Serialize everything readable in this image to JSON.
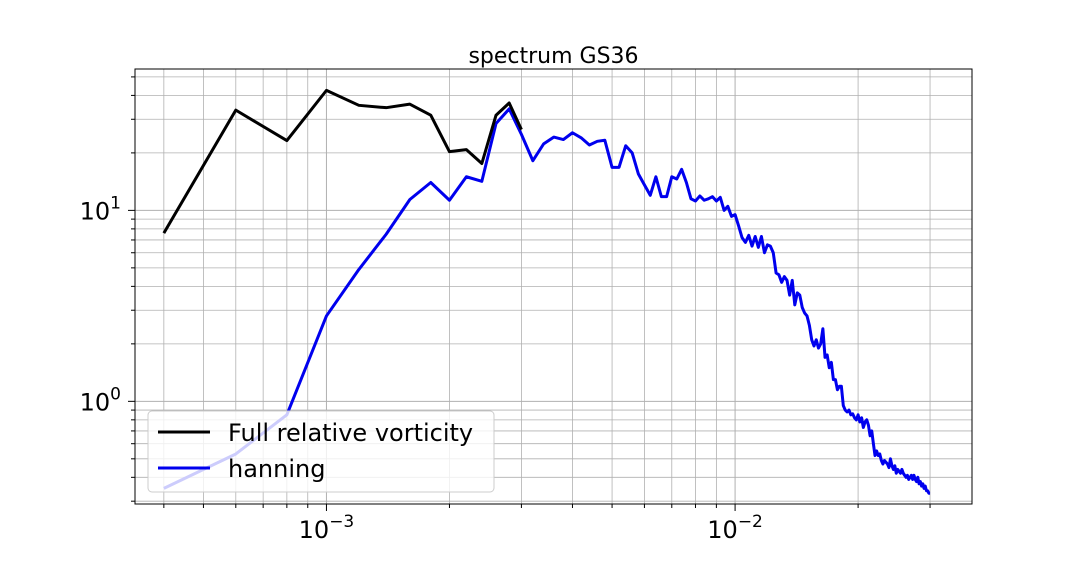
{
  "chart_data": {
    "type": "line",
    "title": "spectrum GS36",
    "xlabel": "",
    "ylabel": "",
    "xscale": "log",
    "yscale": "log",
    "xlim": [
      0.00034,
      0.038
    ],
    "ylim": [
      0.29,
      55
    ],
    "grid": true,
    "legend_position": "lower-left",
    "x_ticks": [
      {
        "value": 0.001,
        "base": "10",
        "exp": "−3"
      },
      {
        "value": 0.01,
        "base": "10",
        "exp": "−2"
      }
    ],
    "y_ticks": [
      {
        "value": 1,
        "base": "10",
        "exp": "0"
      },
      {
        "value": 10,
        "base": "10",
        "exp": "1"
      }
    ],
    "series": [
      {
        "name": "Full relative vorticity",
        "color": "#000000",
        "points": [
          [
            0.0004,
            7.6
          ],
          [
            0.0006,
            33.5
          ],
          [
            0.0008,
            23.2
          ],
          [
            0.001,
            42.5
          ],
          [
            0.0012,
            35.5
          ],
          [
            0.0014,
            34.5
          ],
          [
            0.0016,
            36.0
          ],
          [
            0.0018,
            31.5
          ],
          [
            0.002,
            20.3
          ],
          [
            0.0022,
            20.8
          ],
          [
            0.0024,
            17.6
          ],
          [
            0.0026,
            31.5
          ],
          [
            0.0028,
            36.5
          ],
          [
            0.003,
            26.5
          ]
        ]
      },
      {
        "name": "hanning",
        "color": "#0000ee",
        "points": [
          [
            0.0004,
            0.35
          ],
          [
            0.0006,
            0.53
          ],
          [
            0.0008,
            0.85
          ],
          [
            0.001,
            2.8
          ],
          [
            0.0012,
            4.9
          ],
          [
            0.0014,
            7.5
          ],
          [
            0.0016,
            11.4
          ],
          [
            0.0018,
            14.0
          ],
          [
            0.002,
            11.3
          ],
          [
            0.0022,
            15.0
          ],
          [
            0.0024,
            14.2
          ],
          [
            0.0026,
            28.5
          ],
          [
            0.0028,
            34.0
          ],
          [
            0.003,
            25.0
          ],
          [
            0.0032,
            18.2
          ],
          [
            0.0034,
            22.3
          ],
          [
            0.0036,
            24.2
          ],
          [
            0.0038,
            23.5
          ],
          [
            0.004,
            25.5
          ],
          [
            0.0042,
            24.0
          ],
          [
            0.0044,
            22.0
          ],
          [
            0.0046,
            23.0
          ],
          [
            0.0048,
            23.3
          ],
          [
            0.005,
            16.8
          ],
          [
            0.0052,
            16.8
          ],
          [
            0.0054,
            21.8
          ],
          [
            0.0056,
            20.0
          ],
          [
            0.0058,
            15.5
          ],
          [
            0.006,
            13.6
          ],
          [
            0.0062,
            12.0
          ],
          [
            0.0064,
            15.0
          ],
          [
            0.0066,
            11.8
          ],
          [
            0.0068,
            11.8
          ],
          [
            0.007,
            15.0
          ],
          [
            0.0072,
            14.6
          ],
          [
            0.0074,
            16.4
          ],
          [
            0.0076,
            14.0
          ],
          [
            0.0078,
            11.5
          ],
          [
            0.008,
            11.2
          ],
          [
            0.0082,
            11.9
          ],
          [
            0.0084,
            11.3
          ],
          [
            0.0086,
            11.5
          ],
          [
            0.0088,
            11.8
          ],
          [
            0.009,
            11.2
          ],
          [
            0.0092,
            11.7
          ],
          [
            0.0094,
            10.0
          ],
          [
            0.0096,
            10.5
          ],
          [
            0.0098,
            9.3
          ],
          [
            0.01,
            9.5
          ],
          [
            0.0102,
            8.3
          ],
          [
            0.0104,
            7.2
          ],
          [
            0.0106,
            6.8
          ],
          [
            0.0108,
            7.4
          ],
          [
            0.011,
            6.5
          ],
          [
            0.0112,
            7.3
          ],
          [
            0.0114,
            6.4
          ],
          [
            0.0116,
            7.3
          ],
          [
            0.0118,
            6.0
          ],
          [
            0.012,
            6.6
          ],
          [
            0.0122,
            6.5
          ],
          [
            0.0124,
            6.0
          ],
          [
            0.0126,
            4.7
          ],
          [
            0.0128,
            4.6
          ],
          [
            0.013,
            4.2
          ],
          [
            0.0132,
            4.5
          ],
          [
            0.0134,
            4.3
          ],
          [
            0.0136,
            3.6
          ],
          [
            0.0138,
            4.3
          ],
          [
            0.014,
            3.2
          ],
          [
            0.0142,
            3.7
          ],
          [
            0.0144,
            3.6
          ],
          [
            0.0146,
            3.1
          ],
          [
            0.0148,
            2.9
          ],
          [
            0.015,
            2.8
          ],
          [
            0.0152,
            2.5
          ],
          [
            0.0154,
            2.1
          ],
          [
            0.0156,
            1.95
          ],
          [
            0.0158,
            2.1
          ],
          [
            0.016,
            1.9
          ],
          [
            0.0162,
            2.0
          ],
          [
            0.0164,
            2.4
          ],
          [
            0.0166,
            1.7
          ],
          [
            0.0168,
            1.75
          ],
          [
            0.017,
            1.5
          ],
          [
            0.0172,
            1.6
          ],
          [
            0.0174,
            1.3
          ],
          [
            0.0176,
            1.3
          ],
          [
            0.0178,
            1.15
          ],
          [
            0.018,
            1.2
          ],
          [
            0.0182,
            1.2
          ],
          [
            0.0184,
            0.95
          ],
          [
            0.0186,
            0.9
          ],
          [
            0.0188,
            0.88
          ],
          [
            0.019,
            0.9
          ],
          [
            0.0192,
            0.85
          ],
          [
            0.0194,
            0.86
          ],
          [
            0.0196,
            0.82
          ],
          [
            0.0198,
            0.8
          ],
          [
            0.02,
            0.85
          ],
          [
            0.0202,
            0.78
          ],
          [
            0.0204,
            0.82
          ],
          [
            0.0206,
            0.73
          ],
          [
            0.0208,
            0.78
          ],
          [
            0.021,
            0.8
          ],
          [
            0.0212,
            0.75
          ],
          [
            0.0214,
            0.66
          ],
          [
            0.0216,
            0.7
          ],
          [
            0.0218,
            0.6
          ],
          [
            0.022,
            0.52
          ],
          [
            0.0222,
            0.55
          ],
          [
            0.0224,
            0.52
          ],
          [
            0.0226,
            0.53
          ],
          [
            0.0228,
            0.49
          ],
          [
            0.023,
            0.47
          ],
          [
            0.0232,
            0.49
          ],
          [
            0.0234,
            0.48
          ],
          [
            0.0236,
            0.47
          ],
          [
            0.0238,
            0.45
          ],
          [
            0.024,
            0.5
          ],
          [
            0.0242,
            0.46
          ],
          [
            0.0244,
            0.44
          ],
          [
            0.0246,
            0.46
          ],
          [
            0.0248,
            0.42
          ],
          [
            0.025,
            0.44
          ],
          [
            0.0252,
            0.43
          ],
          [
            0.0254,
            0.42
          ],
          [
            0.0256,
            0.44
          ],
          [
            0.0258,
            0.42
          ],
          [
            0.026,
            0.41
          ],
          [
            0.0262,
            0.4
          ],
          [
            0.0264,
            0.41
          ],
          [
            0.0266,
            0.39
          ],
          [
            0.0268,
            0.4
          ],
          [
            0.027,
            0.41
          ],
          [
            0.0272,
            0.39
          ],
          [
            0.0274,
            0.41
          ],
          [
            0.0276,
            0.39
          ],
          [
            0.0278,
            0.38
          ],
          [
            0.028,
            0.4
          ],
          [
            0.0282,
            0.37
          ],
          [
            0.0284,
            0.38
          ],
          [
            0.0286,
            0.36
          ],
          [
            0.0288,
            0.37
          ],
          [
            0.029,
            0.35
          ],
          [
            0.0292,
            0.36
          ],
          [
            0.0294,
            0.34
          ],
          [
            0.0296,
            0.34
          ],
          [
            0.0298,
            0.33
          ],
          [
            0.03,
            0.33
          ]
        ]
      }
    ]
  }
}
